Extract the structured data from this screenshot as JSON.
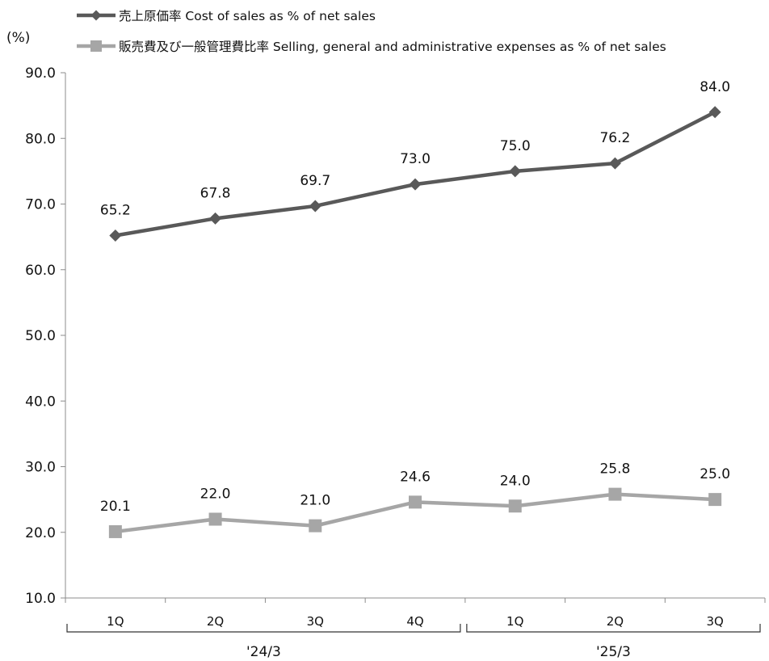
{
  "chart_data": {
    "type": "line",
    "ylabel": "(%)",
    "ylim": [
      10.0,
      90.0
    ],
    "ystep": 10.0,
    "y_tick_labels": [
      "10.0",
      "20.0",
      "30.0",
      "40.0",
      "50.0",
      "60.0",
      "70.0",
      "80.0",
      "90.0"
    ],
    "categories": [
      "1Q",
      "2Q",
      "3Q",
      "4Q",
      "1Q",
      "2Q",
      "3Q"
    ],
    "groups": [
      {
        "label": "'24/3",
        "from": 0,
        "to": 3
      },
      {
        "label": "'25/3",
        "from": 4,
        "to": 6
      }
    ],
    "legend_position": "top-left",
    "grid": false,
    "series": [
      {
        "name": "売上原価率 Cost of sales as % of net sales",
        "values": [
          65.2,
          67.8,
          69.7,
          73.0,
          75.0,
          76.2,
          84.0
        ],
        "labels": [
          "65.2",
          "67.8",
          "69.7",
          "73.0",
          "75.0",
          "76.2",
          "84.0"
        ],
        "color": "#595959",
        "marker": "diamond"
      },
      {
        "name": "販売費及び一般管理費比率 Selling, general and administrative expenses as % of net sales",
        "values": [
          20.1,
          22.0,
          21.0,
          24.6,
          24.0,
          25.8,
          25.0
        ],
        "labels": [
          "20.1",
          "22.0",
          "21.0",
          "24.6",
          "24.0",
          "25.8",
          "25.0"
        ],
        "color": "#a6a6a6",
        "marker": "square"
      }
    ]
  }
}
